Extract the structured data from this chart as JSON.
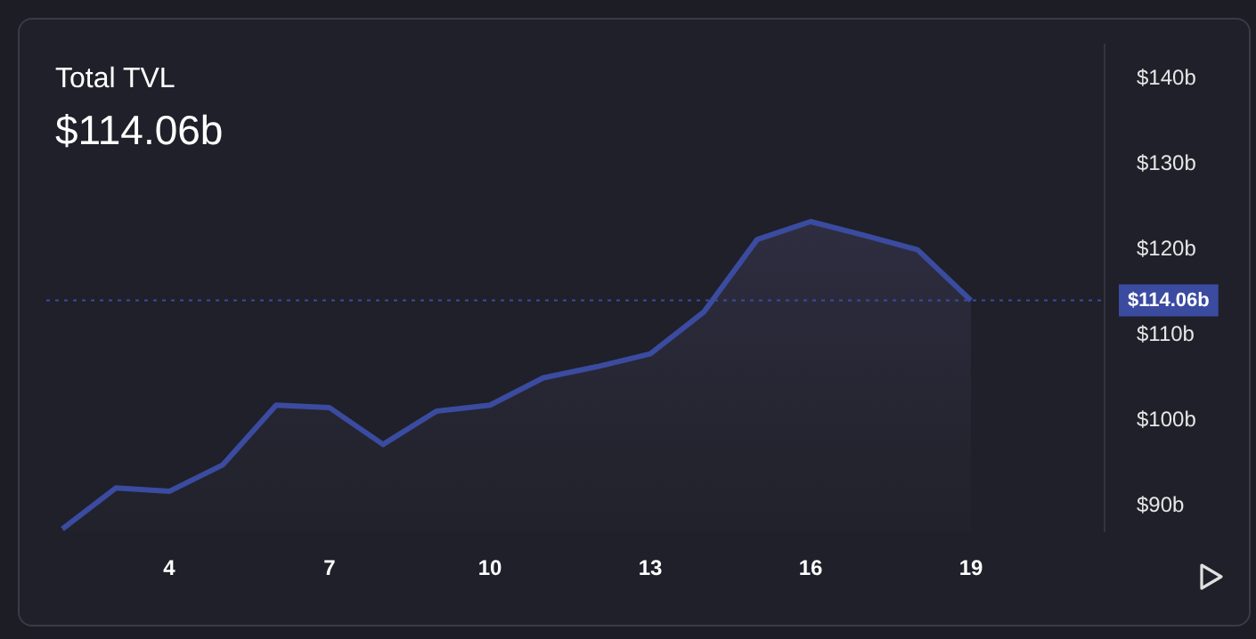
{
  "chart_data": {
    "type": "area",
    "title": "Total TVL",
    "subtitle": "$114.06b",
    "x": [
      2,
      3,
      4,
      5,
      6,
      7,
      8,
      9,
      10,
      11,
      12,
      13,
      14,
      15,
      16,
      17,
      18,
      19
    ],
    "series": [
      {
        "color": "#3b4ba0",
        "values": [
          87.3,
          92.1,
          91.7,
          94.8,
          101.8,
          101.5,
          97.2,
          101.1,
          101.8,
          105.0,
          106.3,
          107.8,
          112.7,
          121.2,
          123.3,
          121.7,
          120.0,
          114.06
        ]
      }
    ],
    "xlim": [
      1.7,
      21.5
    ],
    "xticks": [
      4,
      7,
      10,
      13,
      16,
      19
    ],
    "ylim": [
      87,
      144
    ],
    "yticks": [
      {
        "value": 90,
        "label": "$90b"
      },
      {
        "value": 100,
        "label": "$100b"
      },
      {
        "value": 110,
        "label": "$110b"
      },
      {
        "value": 120,
        "label": "$120b"
      },
      {
        "value": 130,
        "label": "$130b"
      },
      {
        "value": 140,
        "label": "$140b"
      }
    ],
    "ref_lines": [
      {
        "axis": "y",
        "value": 114.06,
        "label": "$114.06b",
        "color": "#3b4ba0",
        "line_style": "dotted"
      }
    ],
    "grid": false,
    "legend": false,
    "marker": "none"
  }
}
